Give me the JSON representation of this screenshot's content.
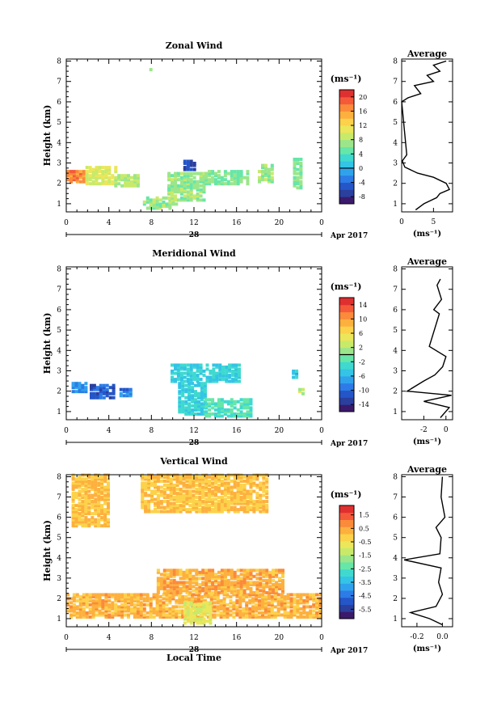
{
  "xaxis": {
    "ticks": [
      "0",
      "4",
      "8",
      "12",
      "16",
      "20",
      "0"
    ],
    "date_label": "28",
    "month_label": "Apr 2017",
    "bottom_label": "Local Time"
  },
  "ylabel": "Height (km)",
  "avg_title": "Average",
  "unit": "(ms⁻¹)",
  "colors": [
    "#3b1a6b",
    "#2a3f9e",
    "#2456c8",
    "#2c7be6",
    "#30a2ec",
    "#33c4e6",
    "#3fd9cf",
    "#66e6a8",
    "#9be68a",
    "#c8ea6a",
    "#ebe65a",
    "#fcd24a",
    "#fdb03e",
    "#fb8a3a",
    "#f45a3a",
    "#e02f2f"
  ],
  "panels": [
    {
      "title": "Zonal Wind",
      "yticks": [
        "1",
        "2",
        "3",
        "4",
        "5",
        "6",
        "7",
        "8"
      ],
      "cbar_ticks": [
        "20",
        "16",
        "12",
        "8",
        "4",
        "0",
        "-4",
        "-8"
      ],
      "cbar_range": [
        -10,
        22
      ],
      "zero_line": 0,
      "avg_ticks": [
        "0",
        "5"
      ],
      "avg_range": [
        0,
        8
      ]
    },
    {
      "title": "Meridional Wind",
      "yticks": [
        "1",
        "2",
        "3",
        "4",
        "5",
        "6",
        "7",
        "8"
      ],
      "cbar_ticks": [
        "14",
        "10",
        "6",
        "2",
        "-2",
        "-6",
        "-10",
        "-14"
      ],
      "cbar_range": [
        -16,
        16
      ],
      "zero_line": 0,
      "avg_ticks": [
        "-2",
        "0"
      ],
      "avg_range": [
        -4,
        0.6
      ]
    },
    {
      "title": "Vertical Wind",
      "yticks": [
        "1",
        "2",
        "3",
        "4",
        "5",
        "6",
        "7",
        "8"
      ],
      "cbar_ticks": [
        "1.5",
        "0.5",
        "-0.5",
        "-1.5",
        "-2.5",
        "-3.5",
        "-4.5",
        "-5.5"
      ],
      "cbar_range": [
        -6.2,
        2.2
      ],
      "zero_line": null,
      "avg_ticks": [
        "-0.2",
        "0.0"
      ],
      "avg_range": [
        -0.32,
        0.08
      ]
    }
  ],
  "chart_data": [
    {
      "type": "heatmap",
      "title": "Zonal Wind",
      "x": "Local Time (h)",
      "ylabel": "Height (km)",
      "xlim": [
        0,
        24
      ],
      "ylim": [
        0.6,
        8.1
      ],
      "unit": "(ms⁻¹)",
      "regions": [
        {
          "x": [
            0,
            1.8
          ],
          "y": [
            2.0,
            2.6
          ],
          "v": 17
        },
        {
          "x": [
            1.8,
            4.5
          ],
          "y": [
            1.9,
            2.8
          ],
          "v": 10
        },
        {
          "x": [
            4.5,
            6.8
          ],
          "y": [
            1.8,
            2.4
          ],
          "v": 8
        },
        {
          "x": [
            7.2,
            10.5
          ],
          "y": [
            0.7,
            1.3
          ],
          "v": 7
        },
        {
          "x": [
            9.5,
            13
          ],
          "y": [
            1.1,
            2.5
          ],
          "v": 7
        },
        {
          "x": [
            13,
            17
          ],
          "y": [
            1.9,
            2.6
          ],
          "v": 6
        },
        {
          "x": [
            18,
            19.5
          ],
          "y": [
            2.0,
            2.9
          ],
          "v": 7
        },
        {
          "x": [
            21.3,
            22
          ],
          "y": [
            1.7,
            3.2
          ],
          "v": 6
        },
        {
          "x": [
            11,
            12
          ],
          "y": [
            2.6,
            3.1
          ],
          "v": -6
        },
        {
          "x": [
            7.8,
            8
          ],
          "y": [
            7.4,
            7.6
          ],
          "v": 6
        }
      ],
      "average": {
        "x_label": "(ms⁻¹)",
        "points": [
          [
            2.2,
            0.7
          ],
          [
            3.5,
            1.0
          ],
          [
            5.5,
            1.3
          ],
          [
            6,
            1.5
          ],
          [
            7.5,
            1.7
          ],
          [
            7.0,
            2.0
          ],
          [
            5,
            2.3
          ],
          [
            2.5,
            2.5
          ],
          [
            0.5,
            2.8
          ],
          [
            0.1,
            3.1
          ],
          [
            0.8,
            3.4
          ],
          [
            0,
            6.0
          ],
          [
            1,
            6.2
          ],
          [
            3,
            6.4
          ],
          [
            2,
            6.8
          ],
          [
            5,
            7.0
          ],
          [
            4,
            7.3
          ],
          [
            6,
            7.5
          ],
          [
            5,
            7.8
          ],
          [
            7,
            8.0
          ]
        ]
      }
    },
    {
      "type": "heatmap",
      "title": "Meridional Wind",
      "x": "Local Time (h)",
      "ylabel": "Height (km)",
      "xlim": [
        0,
        24
      ],
      "ylim": [
        0.6,
        8.1
      ],
      "unit": "(ms⁻¹)",
      "regions": [
        {
          "x": [
            0.5,
            1.8
          ],
          "y": [
            1.9,
            2.4
          ],
          "v": -8
        },
        {
          "x": [
            2.2,
            4.5
          ],
          "y": [
            1.6,
            2.3
          ],
          "v": -11
        },
        {
          "x": [
            5,
            6
          ],
          "y": [
            1.7,
            2.1
          ],
          "v": -9
        },
        {
          "x": [
            9.8,
            16.3
          ],
          "y": [
            2.4,
            3.3
          ],
          "v": -4
        },
        {
          "x": [
            10.5,
            13
          ],
          "y": [
            0.8,
            2.4
          ],
          "v": -4
        },
        {
          "x": [
            13,
            17.5
          ],
          "y": [
            0.7,
            1.6
          ],
          "v": -2
        },
        {
          "x": [
            21.2,
            21.7
          ],
          "y": [
            2.6,
            3.0
          ],
          "v": -5
        },
        {
          "x": [
            21.8,
            22.2
          ],
          "y": [
            1.8,
            2.1
          ],
          "v": 3
        }
      ],
      "average": {
        "x_label": "(ms⁻¹)",
        "points": [
          [
            -0.5,
            0.7
          ],
          [
            0.3,
            1.2
          ],
          [
            -2,
            1.5
          ],
          [
            0.5,
            1.8
          ],
          [
            -3.5,
            2.0
          ],
          [
            -2,
            2.5
          ],
          [
            -1,
            2.8
          ],
          [
            -0.3,
            3.2
          ],
          [
            0,
            3.7
          ],
          [
            -1.5,
            4.2
          ],
          [
            -0.6,
            5.8
          ],
          [
            -1.1,
            6.0
          ],
          [
            -0.4,
            6.5
          ],
          [
            -0.8,
            7.2
          ],
          [
            -0.5,
            7.5
          ]
        ]
      }
    },
    {
      "type": "heatmap",
      "title": "Vertical Wind",
      "x": "Local Time (h)",
      "ylabel": "Height (km)",
      "xlim": [
        0,
        24
      ],
      "ylim": [
        0.6,
        8.1
      ],
      "unit": "(ms⁻¹)",
      "regions": [
        {
          "x": [
            0,
            24
          ],
          "y": [
            1.0,
            2.2
          ],
          "v": 0.3
        },
        {
          "x": [
            8.5,
            20.5
          ],
          "y": [
            2.2,
            3.4
          ],
          "v": 0.4
        },
        {
          "x": [
            11,
            13.5
          ],
          "y": [
            0.7,
            1.8
          ],
          "v": -0.8
        },
        {
          "x": [
            0.5,
            3.8
          ],
          "y": [
            5.5,
            8.0
          ],
          "v": 0.1
        },
        {
          "x": [
            7,
            19
          ],
          "y": [
            6.2,
            8.0
          ],
          "v": 0.1
        }
      ],
      "average": {
        "x_label": "(ms⁻¹)",
        "points": [
          [
            0.0,
            0.7
          ],
          [
            -0.1,
            1.0
          ],
          [
            -0.25,
            1.3
          ],
          [
            -0.05,
            1.6
          ],
          [
            0.0,
            2.2
          ],
          [
            -0.03,
            2.8
          ],
          [
            -0.01,
            3.5
          ],
          [
            -0.3,
            3.9
          ],
          [
            -0.02,
            4.2
          ],
          [
            -0.01,
            5.0
          ],
          [
            -0.05,
            5.5
          ],
          [
            0.02,
            6.0
          ],
          [
            -0.01,
            7.0
          ],
          [
            0.0,
            8.0
          ]
        ]
      }
    }
  ]
}
